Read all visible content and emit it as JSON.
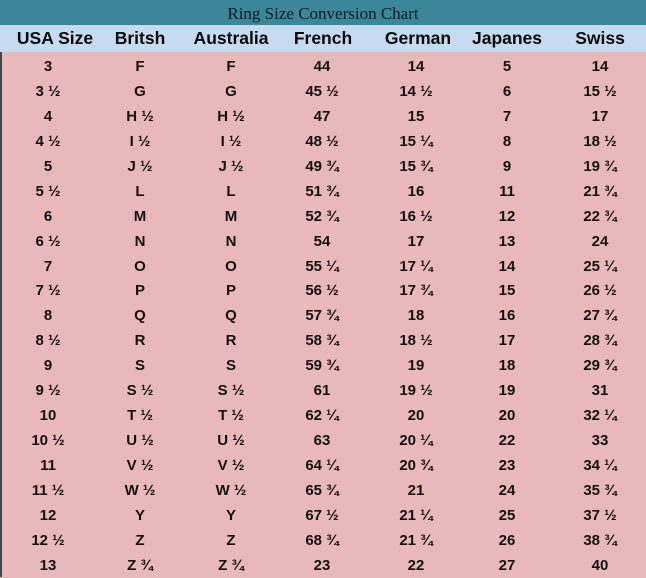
{
  "title": "Ring Size Conversion Chart",
  "colors": {
    "title_bg": "#3b8698",
    "header_bg": "#c6dbef",
    "body_bg": "#e8b8ba"
  },
  "columns": [
    "USA Size",
    "Britsh",
    "Australia",
    "French",
    "German",
    "Japanes",
    "Swiss"
  ],
  "rows": [
    [
      "3",
      "F",
      "F",
      "44",
      "14",
      "5",
      "14"
    ],
    [
      "3 ½",
      "G",
      "G",
      "45 ½",
      "14 ½",
      "6",
      "15 ½"
    ],
    [
      "4",
      "H ½",
      "H ½",
      "47",
      "15",
      "7",
      "17"
    ],
    [
      "4 ½",
      "I ½",
      "I ½",
      "48 ½",
      "15 ¼",
      "8",
      "18 ½"
    ],
    [
      "5",
      "J ½",
      "J ½",
      "49 ¾",
      "15 ¾",
      "9",
      "19 ¾"
    ],
    [
      "5 ½",
      "L",
      "L",
      "51 ¾",
      "16",
      "11",
      "21 ¾"
    ],
    [
      "6",
      "M",
      "M",
      "52 ¾",
      "16 ½",
      "12",
      "22 ¾"
    ],
    [
      "6 ½",
      "N",
      "N",
      "54",
      "17",
      "13",
      "24"
    ],
    [
      "7",
      "O",
      "O",
      "55 ¼",
      "17 ¼",
      "14",
      "25 ¼"
    ],
    [
      "7 ½",
      "P",
      "P",
      "56 ½",
      "17 ¾",
      "15",
      "26 ½"
    ],
    [
      "8",
      "Q",
      "Q",
      "57 ¾",
      "18",
      "16",
      "27  ¾"
    ],
    [
      "8 ½",
      "R",
      "R",
      "58 ¾",
      "18 ½",
      "17",
      "28  ¾"
    ],
    [
      "9",
      "S",
      "S",
      "59 ¾",
      "19",
      "18",
      "29  ¾"
    ],
    [
      "9 ½",
      "S ½",
      "S ½",
      "61",
      "19 ½",
      "19",
      "31"
    ],
    [
      "10",
      "T ½",
      "T ½",
      "62 ¼",
      "20",
      "20",
      "32 ¼"
    ],
    [
      "10 ½",
      "U ½",
      "U ½",
      "63",
      "20 ¼",
      "22",
      "33"
    ],
    [
      "11",
      "V ½",
      "V ½",
      "64 ¼",
      "20 ¾",
      "23",
      "34 ¼"
    ],
    [
      "11 ½",
      "W ½",
      "W ½",
      "65 ¾",
      "21",
      "24",
      "35 ¾"
    ],
    [
      "12",
      "Y",
      "Y",
      "67 ½",
      "21 ¼",
      "25",
      "37 ½"
    ],
    [
      "12 ½",
      "Z",
      "Z",
      "68 ¾",
      "21 ¾",
      "26",
      "38 ¾"
    ],
    [
      "13",
      "Z ¾",
      "Z ¾",
      "23",
      "22",
      "27",
      "40"
    ]
  ]
}
